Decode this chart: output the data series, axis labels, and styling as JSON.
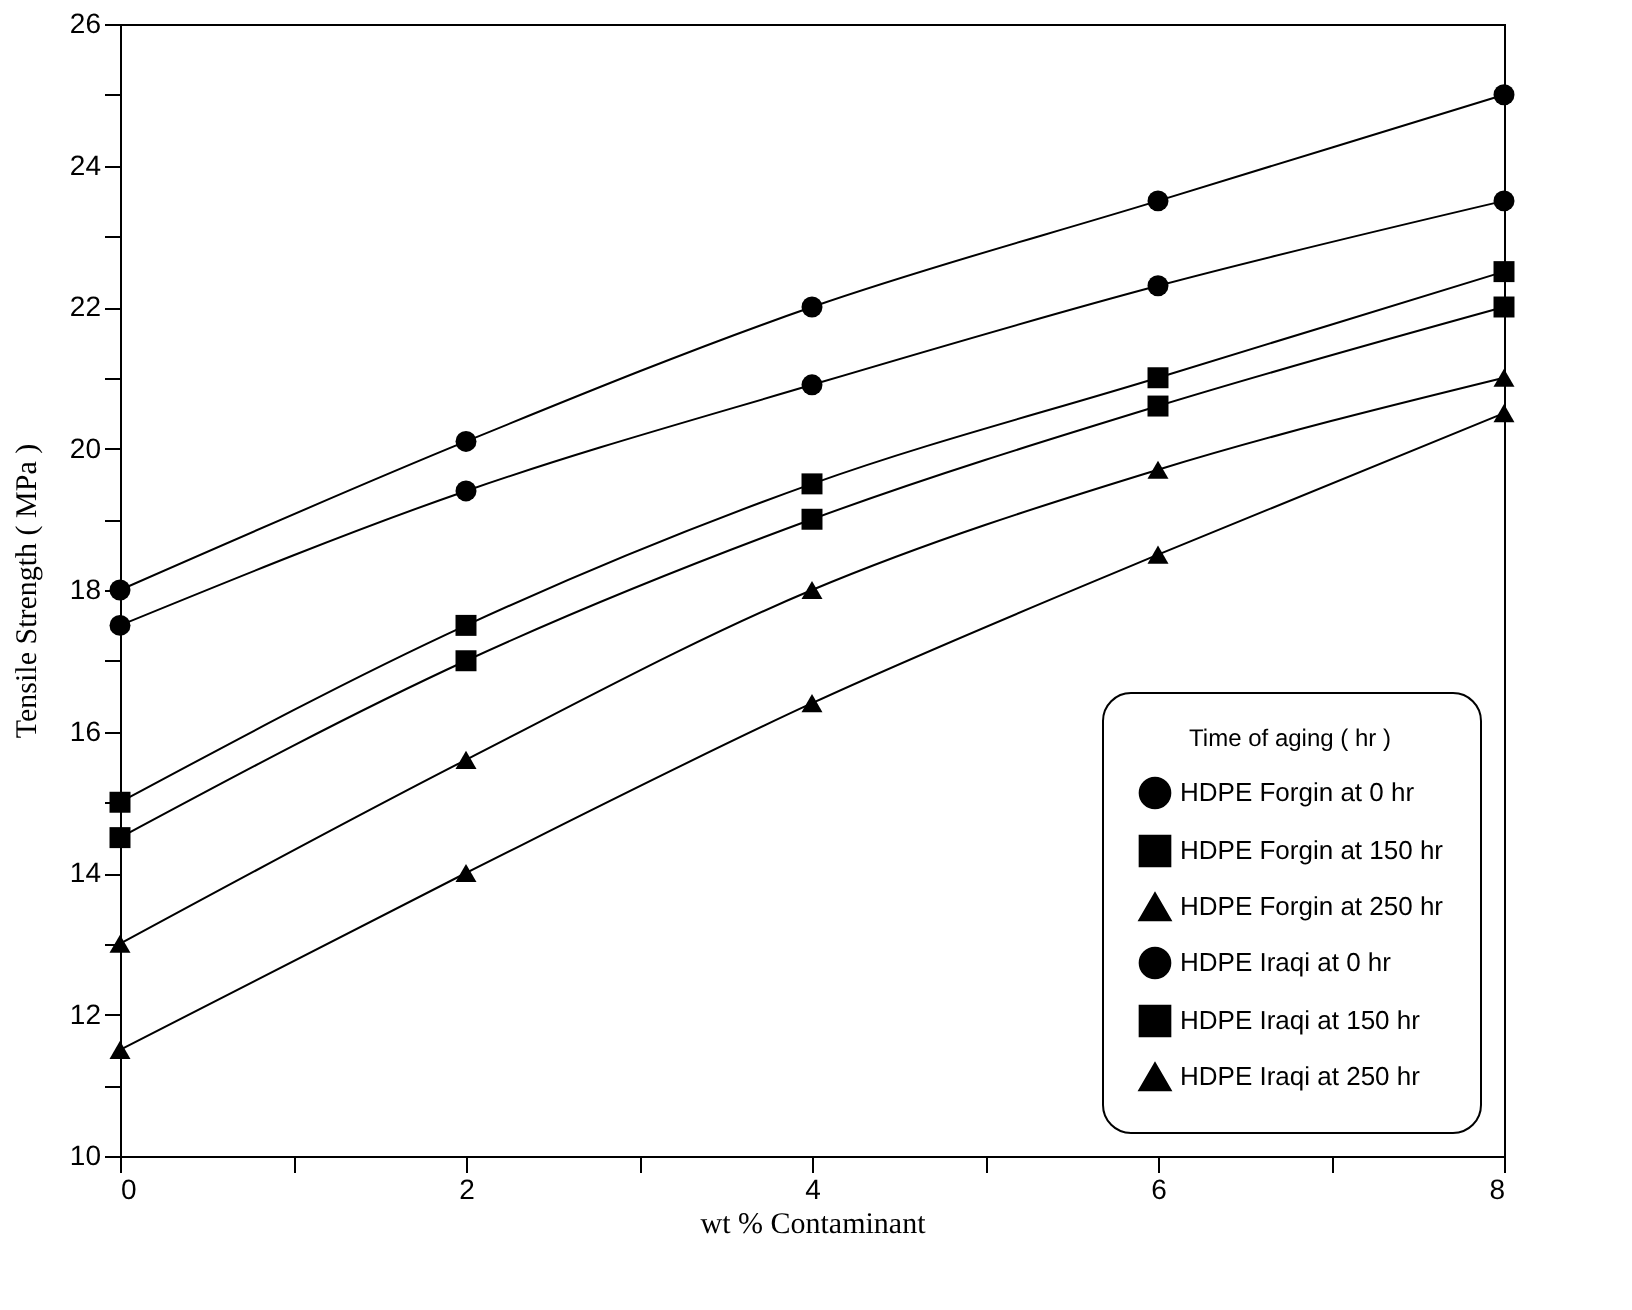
{
  "chart_data": {
    "type": "line",
    "xlabel": "wt % Contaminant",
    "ylabel": "Tensile Strength ( MPa )",
    "legend_title": "Time of aging ( hr )",
    "x": [
      0,
      2,
      4,
      6,
      8
    ],
    "series": [
      {
        "name": "HDPE Forgin at 0 hr",
        "color": "#000000",
        "marker": "circle",
        "values": [
          17.5,
          19.4,
          20.9,
          22.3,
          23.5
        ]
      },
      {
        "name": "HDPE Forgin at 150 hr",
        "color": "#000000",
        "marker": "square",
        "values": [
          14.5,
          17.0,
          19.0,
          20.6,
          22.0
        ]
      },
      {
        "name": "HDPE Forgin at 250 hr",
        "color": "#000000",
        "marker": "triangle",
        "values": [
          11.5,
          14.0,
          16.4,
          18.5,
          20.5
        ]
      },
      {
        "name": "HDPE Iraqi at 0 hr",
        "color": "#000000",
        "marker": "circle",
        "values": [
          18.0,
          20.1,
          22.0,
          23.5,
          25.0
        ]
      },
      {
        "name": "HDPE Iraqi at 150 hr",
        "color": "#000000",
        "marker": "square",
        "values": [
          15.0,
          17.5,
          19.5,
          21.0,
          22.5
        ]
      },
      {
        "name": "HDPE Iraqi at 250 hr",
        "color": "#000000",
        "marker": "triangle",
        "values": [
          13.0,
          15.6,
          18.0,
          19.7,
          21.0
        ]
      }
    ],
    "xlim": [
      0,
      8
    ],
    "ylim": [
      10,
      26
    ],
    "xticks": [
      0,
      {
        "value": 1,
        "label": null
      },
      2,
      {
        "value": 3,
        "label": null
      },
      4,
      {
        "value": 5,
        "label": null
      },
      6,
      {
        "value": 7,
        "label": null
      },
      8
    ],
    "yticks": [
      10,
      {
        "value": 11,
        "label": null
      },
      12,
      {
        "value": 13,
        "label": null
      },
      14,
      {
        "value": 15,
        "label": null
      },
      16,
      {
        "value": 17,
        "label": null
      },
      18,
      {
        "value": 19,
        "label": null
      },
      20,
      {
        "value": 21,
        "label": null
      },
      22,
      {
        "value": 23,
        "label": null
      },
      24,
      {
        "value": 25,
        "label": null
      },
      26
    ],
    "grid": false,
    "legend": "bottom right",
    "line_style": "solid"
  }
}
